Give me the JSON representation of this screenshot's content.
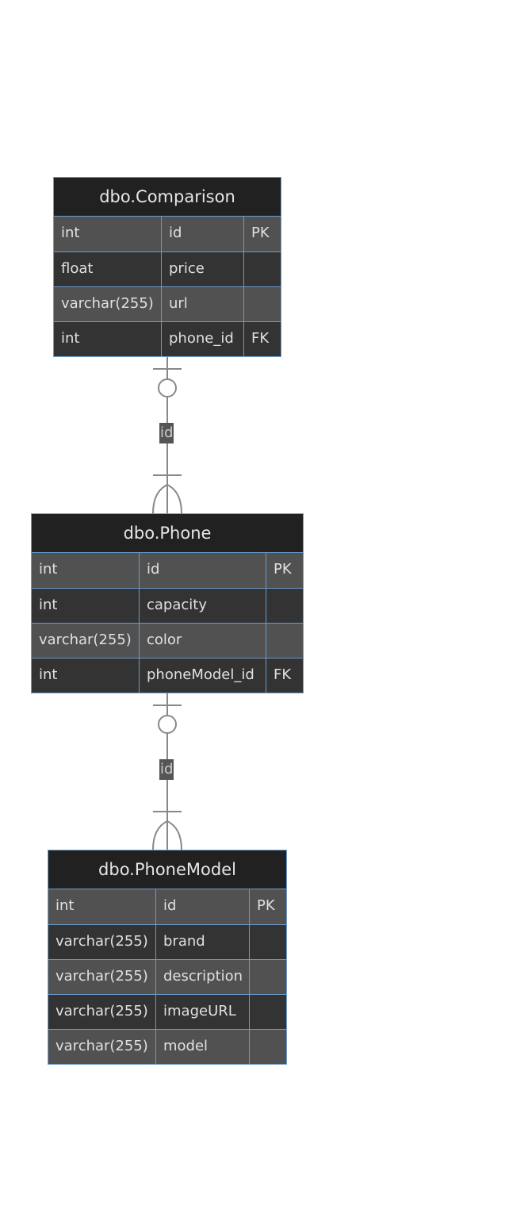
{
  "entities": [
    {
      "id": "comparison",
      "name": "dbo.Comparison",
      "columns": [
        {
          "type": "int",
          "name": "id",
          "key": "PK"
        },
        {
          "type": "float",
          "name": "price",
          "key": ""
        },
        {
          "type": "varchar(255)",
          "name": "url",
          "key": ""
        },
        {
          "type": "int",
          "name": "phone_id",
          "key": "FK"
        }
      ]
    },
    {
      "id": "phone",
      "name": "dbo.Phone",
      "columns": [
        {
          "type": "int",
          "name": "id",
          "key": "PK"
        },
        {
          "type": "int",
          "name": "capacity",
          "key": ""
        },
        {
          "type": "varchar(255)",
          "name": "color",
          "key": ""
        },
        {
          "type": "int",
          "name": "phoneModel_id",
          "key": "FK"
        }
      ]
    },
    {
      "id": "phonemodel",
      "name": "dbo.PhoneModel",
      "columns": [
        {
          "type": "int",
          "name": "id",
          "key": "PK"
        },
        {
          "type": "varchar(255)",
          "name": "brand",
          "key": ""
        },
        {
          "type": "varchar(255)",
          "name": "description",
          "key": ""
        },
        {
          "type": "varchar(255)",
          "name": "imageURL",
          "key": ""
        },
        {
          "type": "varchar(255)",
          "name": "model",
          "key": ""
        }
      ]
    }
  ],
  "relationships": [
    {
      "from": "comparison",
      "to": "phone",
      "label": "id",
      "from_cardinality": "zero-or-one",
      "to_cardinality": "one-or-many"
    },
    {
      "from": "phone",
      "to": "phonemodel",
      "label": "id",
      "from_cardinality": "zero-or-one",
      "to_cardinality": "one-or-many"
    }
  ],
  "colors": {
    "header_bg": "#212121",
    "row_odd": "#515151",
    "row_even": "#333333",
    "border": "#6b9bc9",
    "line": "#888888",
    "label_bg": "#555555"
  }
}
